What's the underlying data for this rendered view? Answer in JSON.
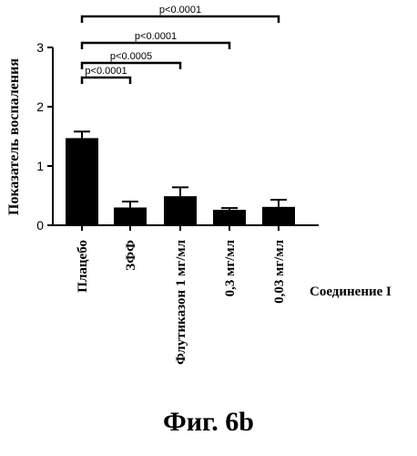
{
  "chart_data": {
    "type": "bar",
    "title": "",
    "ylabel": "Показатель воспаления",
    "xlabel": "Соединение I",
    "ylim": [
      0,
      3
    ],
    "yticks": [
      "0",
      "1",
      "2",
      "3"
    ],
    "categories": [
      "Плацебо",
      "ЗФФ",
      "Флутиказон 1 мг/мл",
      "0,3 мг/мл",
      "0,03 мг/мл"
    ],
    "values": [
      1.47,
      0.3,
      0.49,
      0.26,
      0.31
    ],
    "errors": [
      0.11,
      0.1,
      0.15,
      0.03,
      0.12
    ],
    "bar_color": "#000000",
    "grid": false,
    "comparisons": [
      {
        "from": 0,
        "to": 1,
        "label": "p<0.0001"
      },
      {
        "from": 0,
        "to": 2,
        "label": "p<0.0005"
      },
      {
        "from": 0,
        "to": 3,
        "label": "p<0.0001"
      },
      {
        "from": 0,
        "to": 4,
        "label": "p<0.0001"
      }
    ]
  },
  "caption": "Фиг. 6b"
}
